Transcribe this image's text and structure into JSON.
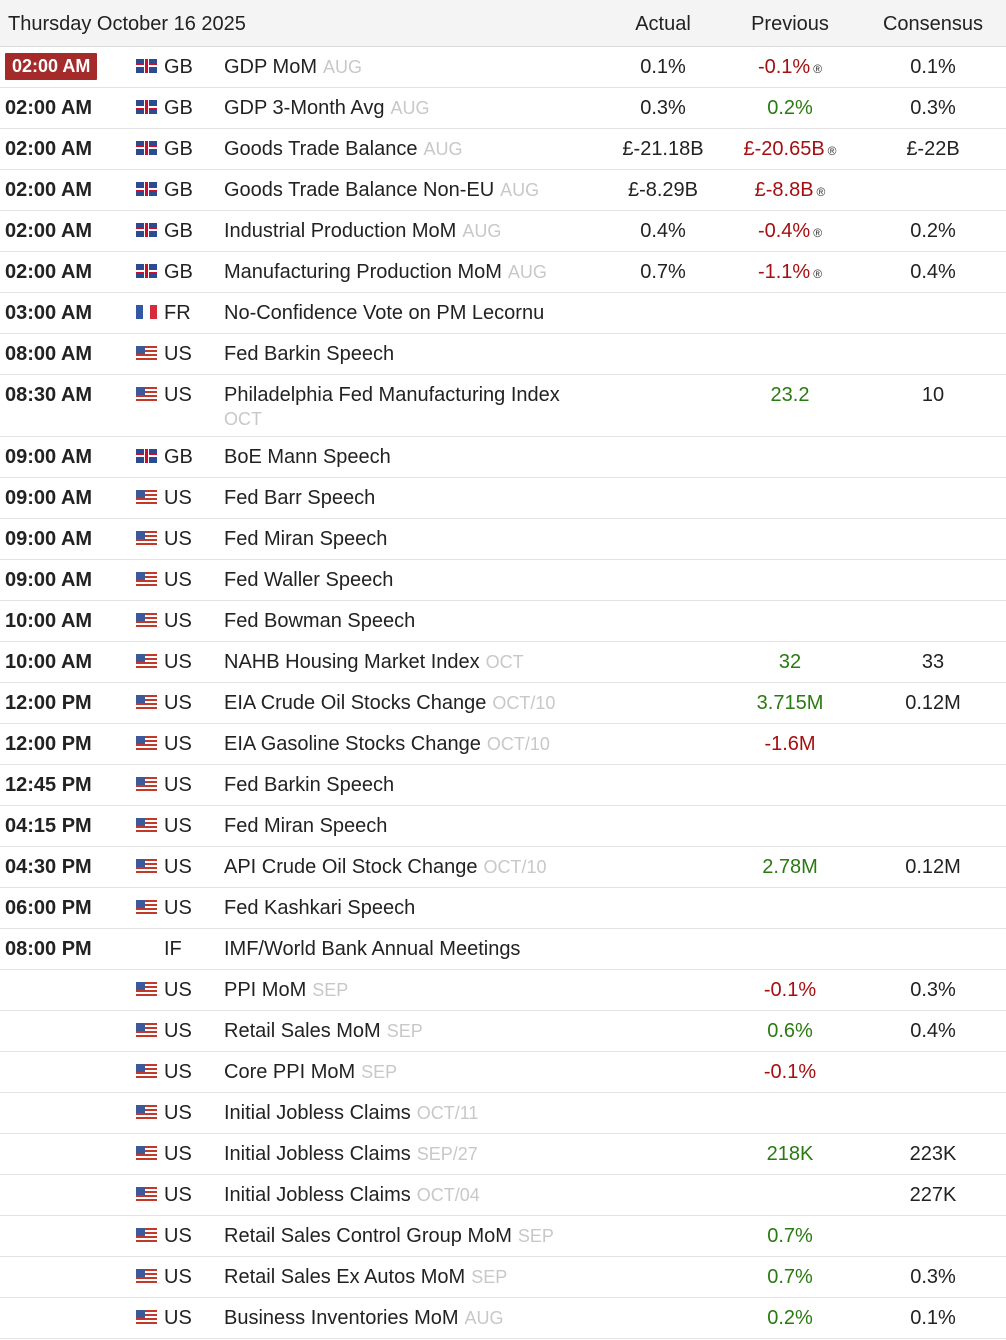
{
  "header": {
    "date": "Thursday October 16 2025",
    "col_actual": "Actual",
    "col_previous": "Previous",
    "col_consensus": "Consensus"
  },
  "rows": [
    {
      "time": "02:00 AM",
      "highlight": true,
      "flag": "gb",
      "country": "GB",
      "event": "GDP MoM",
      "period": "AUG",
      "actual": "0.1%",
      "previous": "-0.1%",
      "prev_dir": "down",
      "revised": true,
      "consensus": "0.1%"
    },
    {
      "time": "02:00 AM",
      "flag": "gb",
      "country": "GB",
      "event": "GDP 3-Month Avg",
      "period": "AUG",
      "actual": "0.3%",
      "previous": "0.2%",
      "prev_dir": "up",
      "consensus": "0.3%"
    },
    {
      "time": "02:00 AM",
      "flag": "gb",
      "country": "GB",
      "event": "Goods Trade Balance",
      "period": "AUG",
      "actual": "£-21.18B",
      "previous": "£-20.65B",
      "prev_dir": "down",
      "revised": true,
      "consensus": "£-22B"
    },
    {
      "time": "02:00 AM",
      "flag": "gb",
      "country": "GB",
      "event": "Goods Trade Balance Non-EU",
      "period": "AUG",
      "actual": "£-8.29B",
      "previous": "£-8.8B",
      "prev_dir": "down",
      "revised": true,
      "consensus": ""
    },
    {
      "time": "02:00 AM",
      "flag": "gb",
      "country": "GB",
      "event": "Industrial Production MoM",
      "period": "AUG",
      "actual": "0.4%",
      "previous": "-0.4%",
      "prev_dir": "down",
      "revised": true,
      "consensus": "0.2%"
    },
    {
      "time": "02:00 AM",
      "flag": "gb",
      "country": "GB",
      "event": "Manufacturing Production MoM",
      "period": "AUG",
      "actual": "0.7%",
      "previous": "-1.1%",
      "prev_dir": "down",
      "revised": true,
      "consensus": "0.4%"
    },
    {
      "time": "03:00 AM",
      "flag": "fr",
      "country": "FR",
      "event": "No-Confidence Vote on PM Lecornu",
      "period": "",
      "actual": "",
      "previous": "",
      "consensus": ""
    },
    {
      "time": "08:00 AM",
      "flag": "us",
      "country": "US",
      "event": "Fed Barkin Speech",
      "period": "",
      "actual": "",
      "previous": "",
      "consensus": ""
    },
    {
      "time": "08:30 AM",
      "flag": "us",
      "country": "US",
      "event": "Philadelphia Fed Manufacturing Index",
      "period": "OCT",
      "tall": true,
      "actual": "",
      "previous": "23.2",
      "prev_dir": "up",
      "consensus": "10"
    },
    {
      "time": "09:00 AM",
      "flag": "gb",
      "country": "GB",
      "event": "BoE Mann Speech",
      "period": "",
      "actual": "",
      "previous": "",
      "consensus": ""
    },
    {
      "time": "09:00 AM",
      "flag": "us",
      "country": "US",
      "event": "Fed Barr Speech",
      "period": "",
      "actual": "",
      "previous": "",
      "consensus": ""
    },
    {
      "time": "09:00 AM",
      "flag": "us",
      "country": "US",
      "event": "Fed Miran Speech",
      "period": "",
      "actual": "",
      "previous": "",
      "consensus": ""
    },
    {
      "time": "09:00 AM",
      "flag": "us",
      "country": "US",
      "event": "Fed Waller Speech",
      "period": "",
      "actual": "",
      "previous": "",
      "consensus": ""
    },
    {
      "time": "10:00 AM",
      "flag": "us",
      "country": "US",
      "event": "Fed Bowman Speech",
      "period": "",
      "actual": "",
      "previous": "",
      "consensus": ""
    },
    {
      "time": "10:00 AM",
      "flag": "us",
      "country": "US",
      "event": "NAHB Housing Market Index",
      "period": "OCT",
      "actual": "",
      "previous": "32",
      "prev_dir": "up",
      "consensus": "33"
    },
    {
      "time": "12:00 PM",
      "flag": "us",
      "country": "US",
      "event": "EIA Crude Oil Stocks Change",
      "period": "OCT/10",
      "actual": "",
      "previous": "3.715M",
      "prev_dir": "up",
      "consensus": "0.12M"
    },
    {
      "time": "12:00 PM",
      "flag": "us",
      "country": "US",
      "event": "EIA Gasoline Stocks Change",
      "period": "OCT/10",
      "actual": "",
      "previous": "-1.6M",
      "prev_dir": "down",
      "consensus": ""
    },
    {
      "time": "12:45 PM",
      "flag": "us",
      "country": "US",
      "event": "Fed Barkin Speech",
      "period": "",
      "actual": "",
      "previous": "",
      "consensus": ""
    },
    {
      "time": "04:15 PM",
      "flag": "us",
      "country": "US",
      "event": "Fed Miran Speech",
      "period": "",
      "actual": "",
      "previous": "",
      "consensus": ""
    },
    {
      "time": "04:30 PM",
      "flag": "us",
      "country": "US",
      "event": "API Crude Oil Stock Change",
      "period": "OCT/10",
      "actual": "",
      "previous": "2.78M",
      "prev_dir": "up",
      "consensus": "0.12M"
    },
    {
      "time": "06:00 PM",
      "flag": "us",
      "country": "US",
      "event": "Fed Kashkari Speech",
      "period": "",
      "actual": "",
      "previous": "",
      "consensus": ""
    },
    {
      "time": "08:00 PM",
      "flag": "",
      "country": "IF",
      "event": "IMF/World Bank Annual Meetings",
      "period": "",
      "actual": "",
      "previous": "",
      "consensus": ""
    },
    {
      "time": "",
      "flag": "us",
      "country": "US",
      "event": "PPI MoM",
      "period": "SEP",
      "actual": "",
      "previous": "-0.1%",
      "prev_dir": "down",
      "consensus": "0.3%"
    },
    {
      "time": "",
      "flag": "us",
      "country": "US",
      "event": "Retail Sales MoM",
      "period": "SEP",
      "actual": "",
      "previous": "0.6%",
      "prev_dir": "up",
      "consensus": "0.4%"
    },
    {
      "time": "",
      "flag": "us",
      "country": "US",
      "event": "Core PPI MoM",
      "period": "SEP",
      "actual": "",
      "previous": "-0.1%",
      "prev_dir": "down",
      "consensus": ""
    },
    {
      "time": "",
      "flag": "us",
      "country": "US",
      "event": "Initial Jobless Claims",
      "period": "OCT/11",
      "actual": "",
      "previous": "",
      "consensus": ""
    },
    {
      "time": "",
      "flag": "us",
      "country": "US",
      "event": "Initial Jobless Claims",
      "period": "SEP/27",
      "actual": "",
      "previous": "218K",
      "prev_dir": "up",
      "consensus": "223K"
    },
    {
      "time": "",
      "flag": "us",
      "country": "US",
      "event": "Initial Jobless Claims",
      "period": "OCT/04",
      "actual": "",
      "previous": "",
      "consensus": "227K"
    },
    {
      "time": "",
      "flag": "us",
      "country": "US",
      "event": "Retail Sales Control Group MoM",
      "period": "SEP",
      "actual": "",
      "previous": "0.7%",
      "prev_dir": "up",
      "consensus": ""
    },
    {
      "time": "",
      "flag": "us",
      "country": "US",
      "event": "Retail Sales Ex Autos MoM",
      "period": "SEP",
      "actual": "",
      "previous": "0.7%",
      "prev_dir": "up",
      "consensus": "0.3%"
    },
    {
      "time": "",
      "flag": "us",
      "country": "US",
      "event": "Business Inventories MoM",
      "period": "AUG",
      "actual": "",
      "previous": "0.2%",
      "prev_dir": "up",
      "consensus": "0.1%"
    }
  ],
  "revised_mark": "®",
  "colors": {
    "up": "#2a7a12",
    "down": "#a50f0f",
    "highlight": "#a52a2a"
  }
}
